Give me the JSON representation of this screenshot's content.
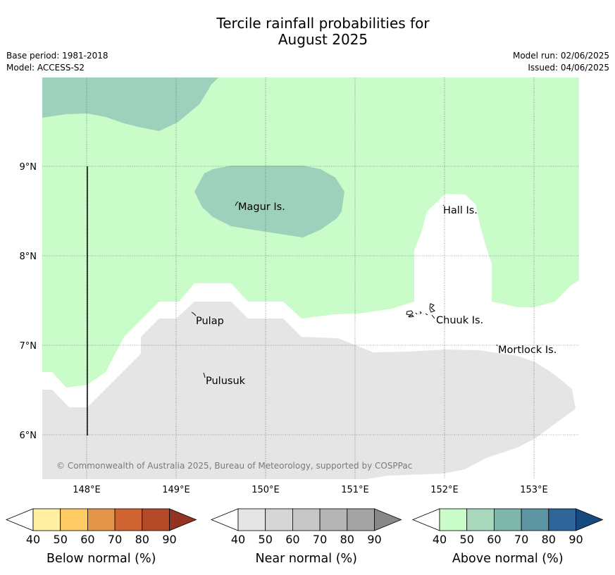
{
  "title": {
    "line1": "Tercile rainfall probabilities for",
    "line2": "August 2025"
  },
  "meta": {
    "base_period": "Base period: 1981-2018",
    "model": "Model: ACCESS-S2",
    "model_run": "Model run: 02/06/2025",
    "issued": "Issued: 04/06/2025"
  },
  "map": {
    "lon_range": [
      147.5,
      153.5
    ],
    "lat_range": [
      5.5,
      10.0
    ],
    "lon_ticks": [
      "148°E",
      "149°E",
      "150°E",
      "151°E",
      "152°E",
      "153°E"
    ],
    "lat_ticks": [
      "9°N",
      "8°N",
      "7°N",
      "6°N"
    ],
    "places": [
      "Magur Is.",
      "Hall Is.",
      "Pulap",
      "Chuuk Is.",
      "Mortlock Is.",
      "Pulusuk"
    ],
    "copyright": "© Commonwealth of Australia 2025, Bureau of Meteorology, supported by COSPPac",
    "region_colors": {
      "above_normal_40_50": "#c9fcc8",
      "above_normal_50_60": "#9ed1bb",
      "near_normal_40_50": "#e5e5e5"
    }
  },
  "legends": [
    {
      "title": "Below normal (%)",
      "ticks": [
        "40",
        "50",
        "60",
        "70",
        "80",
        "90"
      ],
      "colors": [
        "#fef0a0",
        "#fecc65",
        "#e49648",
        "#cf6432",
        "#b24a28"
      ],
      "extend_color": "#923421"
    },
    {
      "title": "Near normal (%)",
      "ticks": [
        "40",
        "50",
        "60",
        "70",
        "80",
        "90"
      ],
      "colors": [
        "#e5e5e5",
        "#d6d6d6",
        "#c7c7c7",
        "#b5b5b5",
        "#a4a4a4"
      ],
      "extend_color": "#888888"
    },
    {
      "title": "Above normal (%)",
      "ticks": [
        "40",
        "50",
        "60",
        "70",
        "80",
        "90"
      ],
      "colors": [
        "#c9fcc8",
        "#a9d8bd",
        "#7eb6ac",
        "#5c94a2",
        "#30659a"
      ],
      "extend_color": "#144a7e"
    }
  ]
}
